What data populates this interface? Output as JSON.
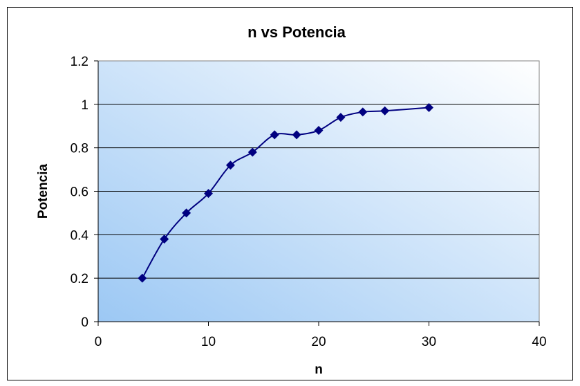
{
  "chart_data": {
    "type": "scatter",
    "title": "n vs Potencia",
    "xlabel": "n",
    "ylabel": "Potencia",
    "xlim": [
      0,
      40
    ],
    "ylim": [
      0,
      1.2
    ],
    "x_ticks": [
      "0",
      "10",
      "20",
      "30",
      "40"
    ],
    "y_ticks": [
      "0",
      "0.2",
      "0.4",
      "0.6",
      "0.8",
      "1",
      "1.2"
    ],
    "grid": "horizontal",
    "line_style": "smoothed",
    "marker": "diamond",
    "series": [
      {
        "x": [
          4,
          6,
          8,
          10,
          12,
          14,
          16,
          18,
          20,
          22,
          24,
          26,
          30
        ],
        "y": [
          0.2,
          0.38,
          0.5,
          0.59,
          0.72,
          0.78,
          0.86,
          0.86,
          0.88,
          0.94,
          0.965,
          0.97,
          0.985
        ]
      }
    ],
    "colors": {
      "series": "#000080",
      "plot_gradient_start": "#9cc8f4",
      "plot_gradient_end": "#ffffff"
    }
  }
}
